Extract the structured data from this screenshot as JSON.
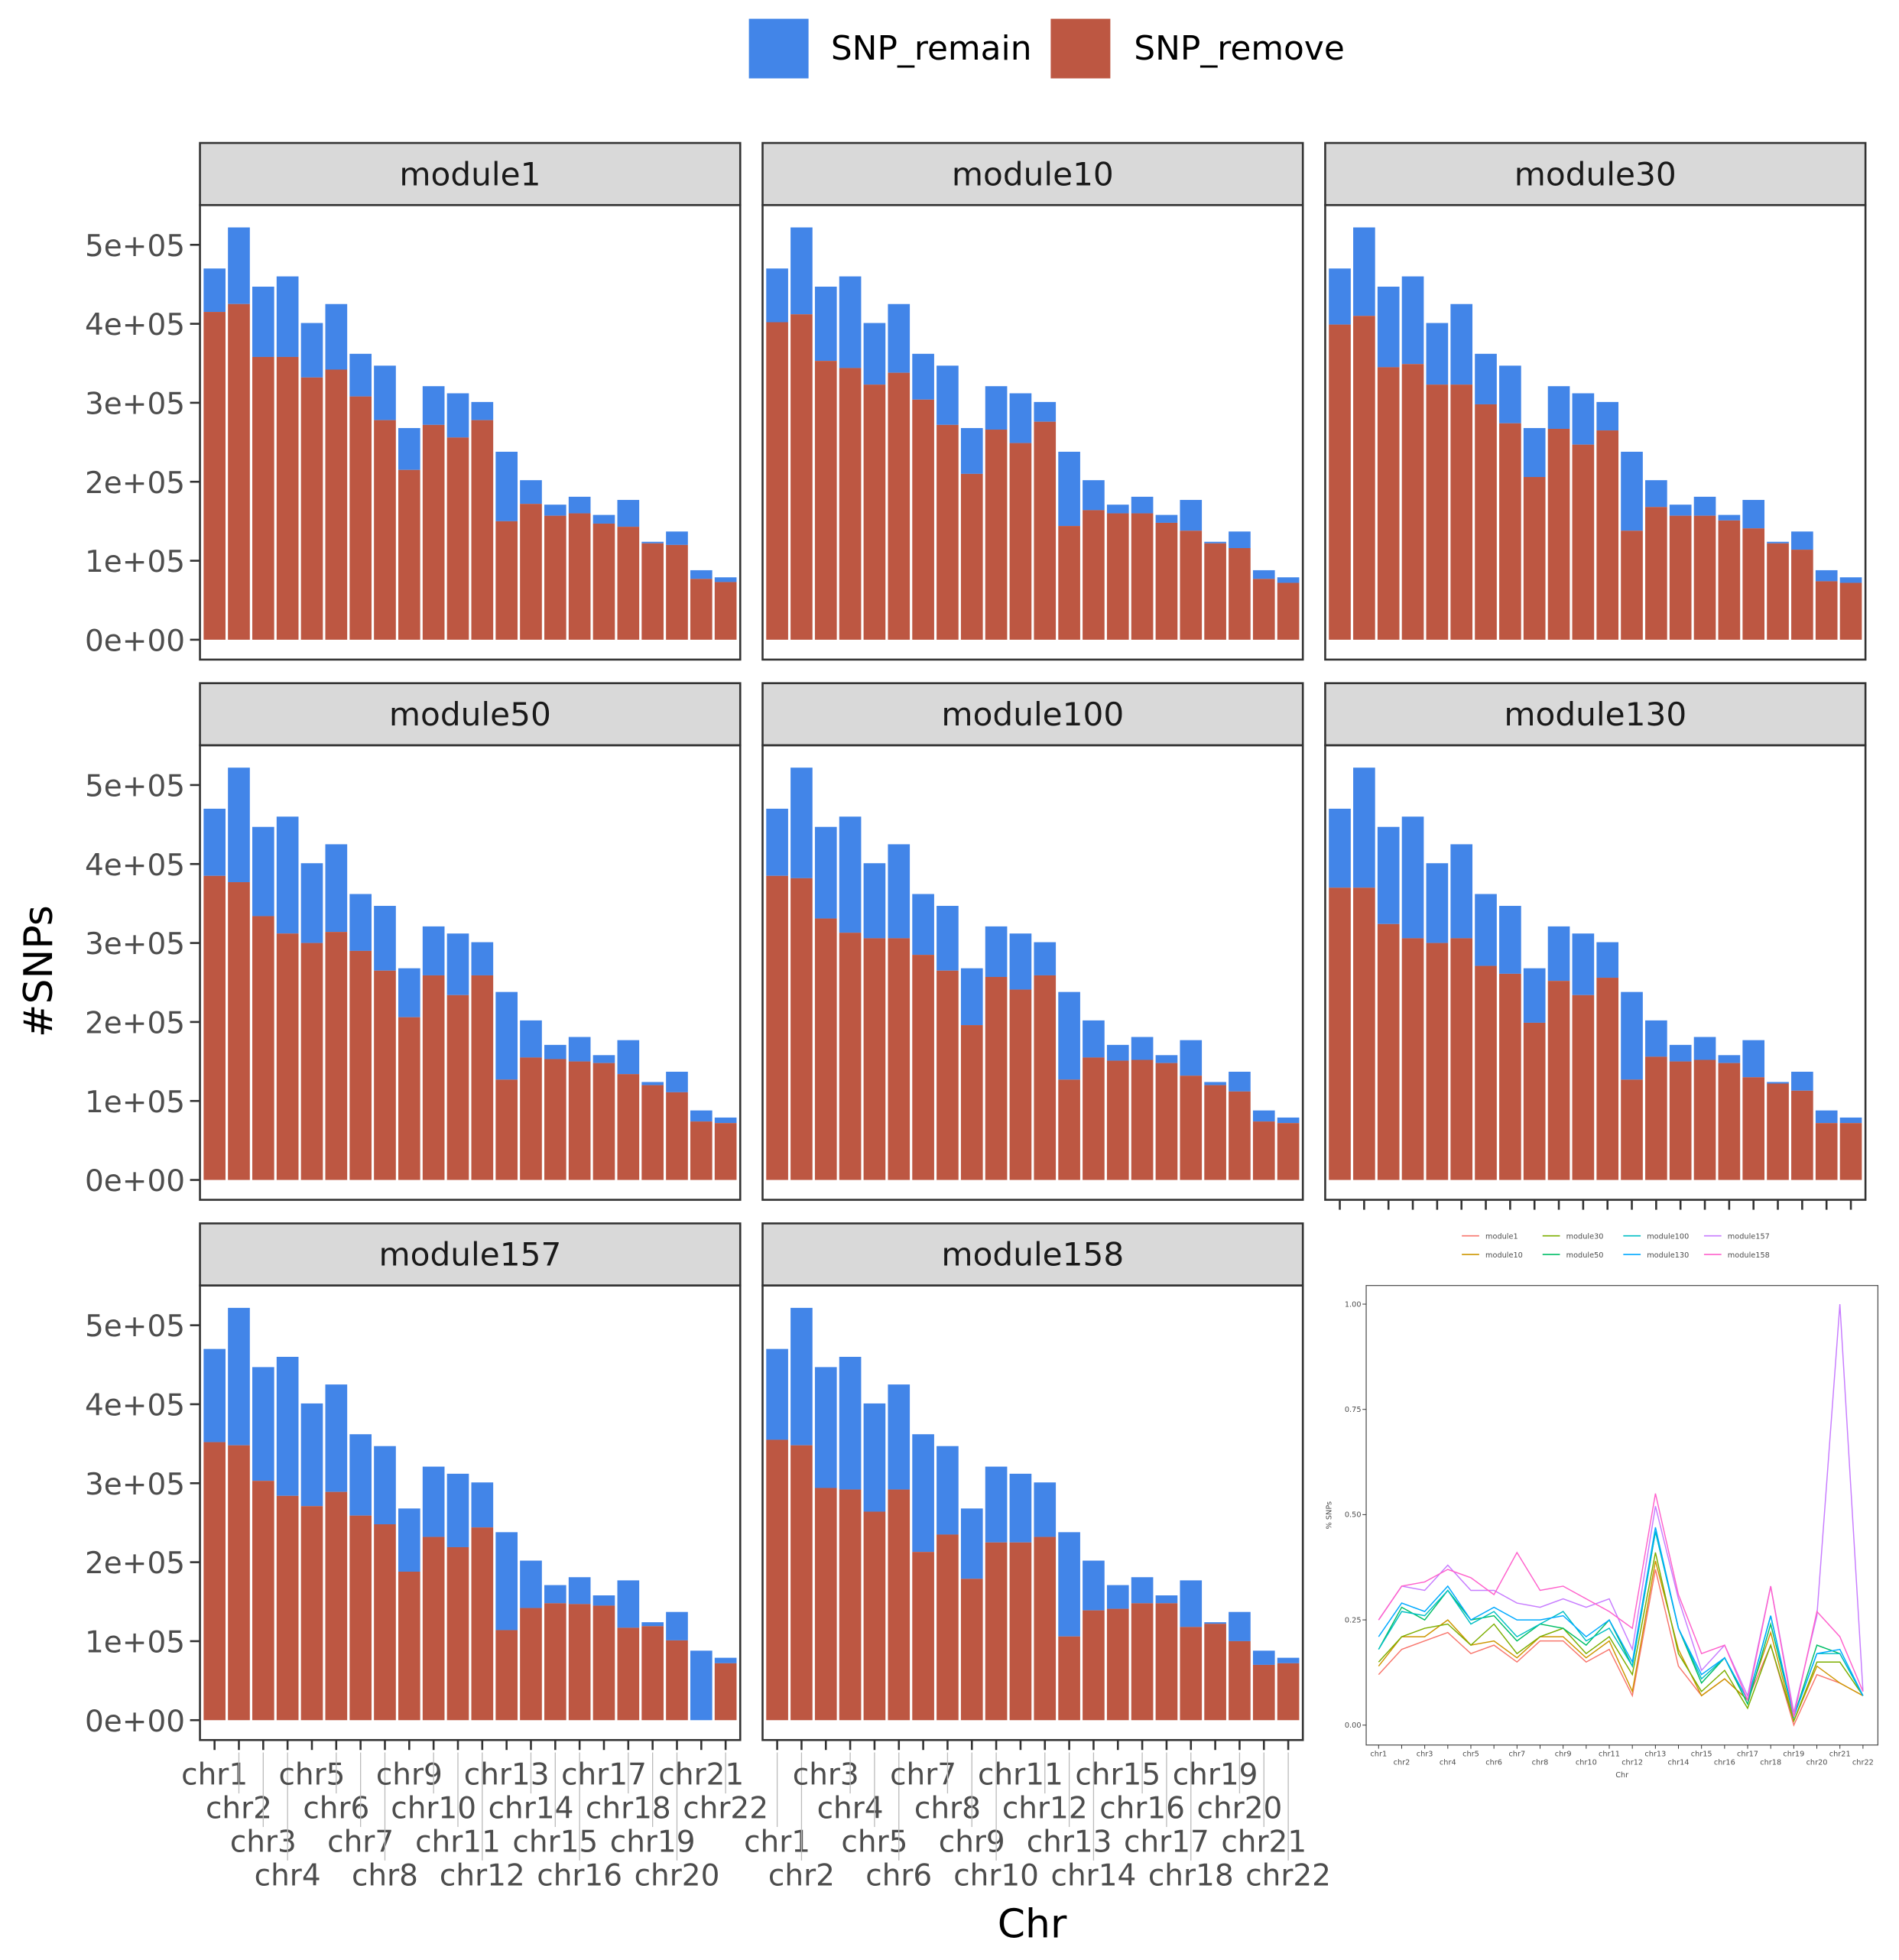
{
  "legend": {
    "items": [
      {
        "label": "SNP_remain",
        "color": "#4285E8"
      },
      {
        "label": "SNP_remove",
        "color": "#BD5742"
      }
    ]
  },
  "chart_data": [
    {
      "type": "bar",
      "stacked": true,
      "xlabel": "Chr",
      "ylabel": "#SNPs",
      "ylim": [
        0,
        550000
      ],
      "yticks": [
        0,
        100000,
        200000,
        300000,
        400000,
        500000
      ],
      "ytick_labels": [
        "0e+00",
        "1e+05",
        "2e+05",
        "3e+05",
        "4e+05",
        "5e+05"
      ],
      "categories": [
        "chr1",
        "chr2",
        "chr3",
        "chr4",
        "chr5",
        "chr6",
        "chr7",
        "chr8",
        "chr9",
        "chr10",
        "chr11",
        "chr12",
        "chr13",
        "chr14",
        "chr15",
        "chr16",
        "chr17",
        "chr18",
        "chr19",
        "chr20",
        "chr21",
        "chr22"
      ],
      "stack_total": [
        470000,
        522000,
        447000,
        460000,
        401000,
        425000,
        362000,
        347000,
        268000,
        321000,
        312000,
        301000,
        238000,
        202000,
        171000,
        181000,
        158000,
        177000,
        124000,
        137000,
        88000,
        79000
      ],
      "panels": [
        {
          "title": "module1",
          "SNP_remove": [
            415000,
            425000,
            358000,
            358000,
            332000,
            342000,
            308000,
            278000,
            215000,
            272000,
            256000,
            278000,
            150000,
            172000,
            157000,
            160000,
            147000,
            143000,
            122000,
            120000,
            77000,
            73000
          ]
        },
        {
          "title": "module10",
          "SNP_remove": [
            402000,
            412000,
            353000,
            344000,
            323000,
            338000,
            304000,
            272000,
            210000,
            266000,
            249000,
            276000,
            144000,
            164000,
            160000,
            160000,
            148000,
            138000,
            122000,
            116000,
            77000,
            72000
          ]
        },
        {
          "title": "module30",
          "SNP_remove": [
            399000,
            410000,
            345000,
            349000,
            323000,
            323000,
            298000,
            274000,
            206000,
            267000,
            247000,
            265000,
            138000,
            168000,
            157000,
            157000,
            151000,
            141000,
            122000,
            114000,
            74000,
            72000
          ]
        },
        {
          "title": "module50",
          "SNP_remove": [
            385000,
            377000,
            334000,
            312000,
            300000,
            314000,
            290000,
            265000,
            206000,
            259000,
            234000,
            259000,
            127000,
            155000,
            153000,
            150000,
            148000,
            134000,
            120000,
            111000,
            74000,
            72000
          ]
        },
        {
          "title": "module100",
          "SNP_remove": [
            385000,
            382000,
            331000,
            313000,
            306000,
            306000,
            285000,
            265000,
            196000,
            257000,
            241000,
            259000,
            127000,
            155000,
            151000,
            152000,
            148000,
            132000,
            120000,
            112000,
            74000,
            72000
          ]
        },
        {
          "title": "module130",
          "SNP_remove": [
            370000,
            370000,
            324000,
            306000,
            300000,
            306000,
            271000,
            261000,
            199000,
            252000,
            234000,
            256000,
            127000,
            156000,
            150000,
            152000,
            148000,
            130000,
            122000,
            113000,
            72000,
            72000
          ]
        },
        {
          "title": "module157",
          "SNP_remove": [
            352000,
            348000,
            303000,
            284000,
            271000,
            289000,
            259000,
            248000,
            188000,
            232000,
            219000,
            244000,
            114000,
            142000,
            148000,
            147000,
            145000,
            117000,
            119000,
            101000,
            0,
            72000
          ]
        },
        {
          "title": "module158",
          "SNP_remove": [
            355000,
            348000,
            294000,
            292000,
            264000,
            292000,
            213000,
            235000,
            179000,
            225000,
            225000,
            232000,
            106000,
            139000,
            141000,
            148000,
            148000,
            118000,
            122000,
            100000,
            70000,
            72000
          ]
        }
      ]
    },
    {
      "type": "line",
      "xlabel": "Chr",
      "ylabel": "% SNPs",
      "ylim": [
        0,
        1
      ],
      "yticks": [
        0,
        0.25,
        0.5,
        0.75,
        1
      ],
      "ytick_labels": [
        "0.00",
        "0.25",
        "0.50",
        "0.75",
        "1.00"
      ],
      "legend_position": "top",
      "categories": [
        "chr1",
        "chr2",
        "chr3",
        "chr4",
        "chr5",
        "chr6",
        "chr7",
        "chr8",
        "chr9",
        "chr10",
        "chr11",
        "chr12",
        "chr13",
        "chr14",
        "chr15",
        "chr16",
        "chr17",
        "chr18",
        "chr19",
        "chr20",
        "chr21",
        "chr22"
      ],
      "series": [
        {
          "name": "module1",
          "color": "#F8766D",
          "values": [
            0.12,
            0.18,
            0.2,
            0.22,
            0.17,
            0.19,
            0.15,
            0.2,
            0.2,
            0.15,
            0.18,
            0.07,
            0.37,
            0.14,
            0.07,
            0.11,
            0.06,
            0.19,
            0.0,
            0.12,
            0.1,
            0.07
          ]
        },
        {
          "name": "module10",
          "color": "#CD9600",
          "values": [
            0.14,
            0.21,
            0.21,
            0.25,
            0.19,
            0.2,
            0.16,
            0.21,
            0.21,
            0.16,
            0.2,
            0.08,
            0.39,
            0.18,
            0.07,
            0.11,
            0.06,
            0.22,
            0.01,
            0.14,
            0.1,
            0.07
          ]
        },
        {
          "name": "module30",
          "color": "#7CAE00",
          "values": [
            0.15,
            0.21,
            0.23,
            0.24,
            0.19,
            0.24,
            0.17,
            0.21,
            0.23,
            0.17,
            0.21,
            0.12,
            0.41,
            0.17,
            0.08,
            0.13,
            0.04,
            0.19,
            0.01,
            0.15,
            0.15,
            0.07
          ]
        },
        {
          "name": "module50",
          "color": "#00BE67",
          "values": [
            0.18,
            0.28,
            0.25,
            0.32,
            0.25,
            0.26,
            0.2,
            0.24,
            0.23,
            0.19,
            0.25,
            0.14,
            0.46,
            0.23,
            0.1,
            0.16,
            0.05,
            0.24,
            0.02,
            0.19,
            0.17,
            0.07
          ]
        },
        {
          "name": "module100",
          "color": "#00BFC4",
          "values": [
            0.18,
            0.27,
            0.26,
            0.32,
            0.24,
            0.27,
            0.21,
            0.24,
            0.27,
            0.2,
            0.23,
            0.14,
            0.46,
            0.23,
            0.11,
            0.16,
            0.06,
            0.26,
            0.02,
            0.17,
            0.17,
            0.07
          ]
        },
        {
          "name": "module130",
          "color": "#00A9FF",
          "values": [
            0.21,
            0.29,
            0.27,
            0.33,
            0.25,
            0.28,
            0.25,
            0.25,
            0.26,
            0.21,
            0.25,
            0.15,
            0.47,
            0.23,
            0.12,
            0.16,
            0.06,
            0.26,
            0.02,
            0.17,
            0.18,
            0.07
          ]
        },
        {
          "name": "module157",
          "color": "#C77CFF",
          "values": [
            0.25,
            0.33,
            0.32,
            0.38,
            0.32,
            0.32,
            0.29,
            0.28,
            0.3,
            0.28,
            0.3,
            0.18,
            0.52,
            0.3,
            0.13,
            0.19,
            0.07,
            0.33,
            0.03,
            0.26,
            1.0,
            0.08
          ]
        },
        {
          "name": "module158",
          "color": "#FF61CC",
          "values": [
            0.25,
            0.33,
            0.34,
            0.37,
            0.35,
            0.31,
            0.41,
            0.32,
            0.33,
            0.3,
            0.27,
            0.23,
            0.55,
            0.31,
            0.17,
            0.19,
            0.06,
            0.33,
            0.02,
            0.27,
            0.21,
            0.08
          ]
        }
      ]
    }
  ]
}
